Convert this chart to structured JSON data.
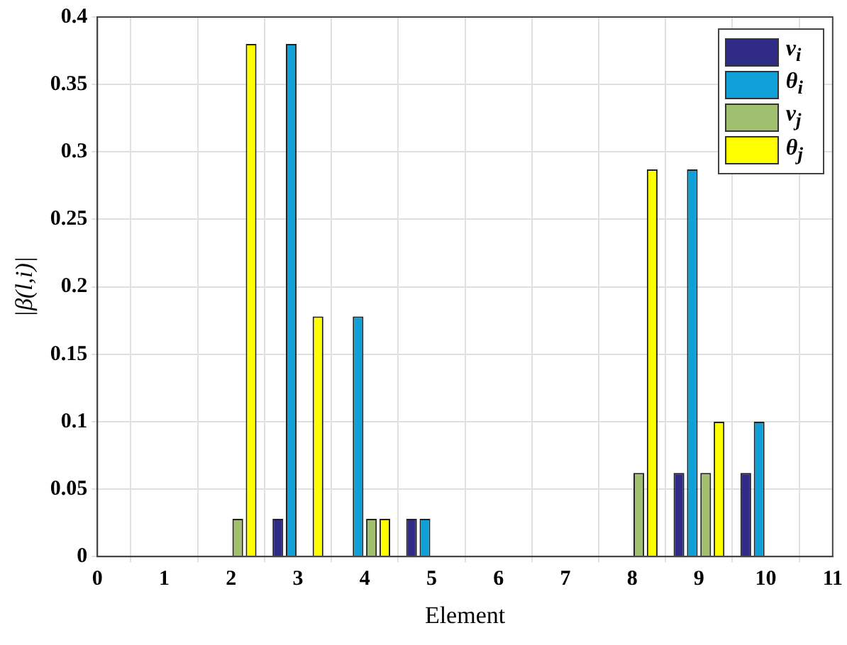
{
  "chart_data": {
    "type": "bar",
    "xlabel": "Element",
    "ylabel": "|β(l,i)|",
    "x": [
      1,
      2,
      3,
      4,
      5,
      6,
      7,
      8,
      9,
      10
    ],
    "xlim": [
      0,
      11
    ],
    "xticks": [
      0,
      1,
      2,
      3,
      4,
      5,
      6,
      7,
      8,
      9,
      10,
      11
    ],
    "ylim": [
      0,
      0.4
    ],
    "yticks": [
      0,
      0.05,
      0.1,
      0.15,
      0.2,
      0.25,
      0.3,
      0.35,
      0.4
    ],
    "grid": true,
    "legend": "top right",
    "series": [
      {
        "name": "v$_{i}$",
        "color": "#2e2a85",
        "values": [
          0,
          0,
          0.028,
          0,
          0.028,
          0,
          0,
          0,
          0.062,
          0.062
        ]
      },
      {
        "name": "θ$_{i}$",
        "color": "#0fa0d8",
        "values": [
          0,
          0,
          0.38,
          0.178,
          0.028,
          0,
          0,
          0,
          0.287,
          0.1
        ]
      },
      {
        "name": "v$_{j}$",
        "color": "#a0c070",
        "values": [
          0,
          0.028,
          0,
          0.028,
          0,
          0,
          0,
          0.062,
          0.062,
          0
        ]
      },
      {
        "name": "θ$_{j}$",
        "color": "#ffff00",
        "values": [
          0,
          0.38,
          0.178,
          0.028,
          0,
          0,
          0,
          0.287,
          0.1,
          0
        ]
      }
    ]
  }
}
